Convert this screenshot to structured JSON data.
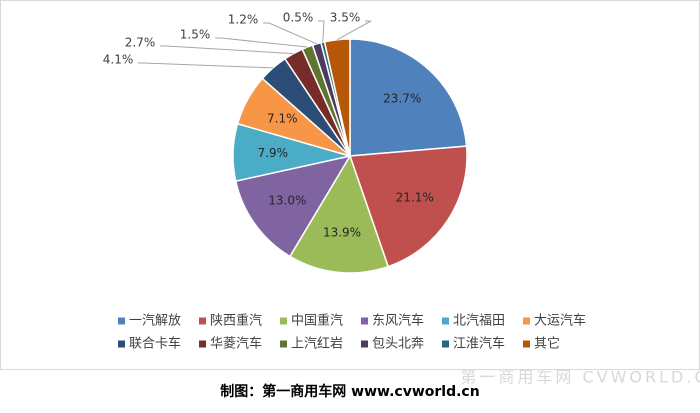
{
  "chart_data": {
    "type": "pie",
    "categories": [
      "一汽解放",
      "陕西重汽",
      "中国重汽",
      "东风汽车",
      "北汽福田",
      "大运汽车",
      "联合卡车",
      "华菱汽车",
      "上汽红岩",
      "包头北奔",
      "江淮汽车",
      "其它"
    ],
    "values": [
      23.7,
      21.1,
      13.9,
      13.0,
      7.9,
      7.1,
      4.1,
      2.7,
      1.5,
      1.2,
      0.5,
      3.5
    ],
    "value_labels": [
      "23.7%",
      "21.1%",
      "13.9%",
      "13.0%",
      "7.9%",
      "7.1%",
      "4.1%",
      "2.7%",
      "1.5%",
      "1.2%",
      "0.5%",
      "3.5%"
    ],
    "colors": [
      "#4f81bd",
      "#c0504d",
      "#9bbb59",
      "#8064a2",
      "#4bacc6",
      "#f79646",
      "#2c4d75",
      "#772c2a",
      "#5f7530",
      "#4d3b62",
      "#276a7c",
      "#b65708"
    ],
    "legend": "bottom"
  },
  "source": "制图：第一商用车网 www.cvworld.cn",
  "watermark": "第一商用车网 CVWORLD.CN"
}
